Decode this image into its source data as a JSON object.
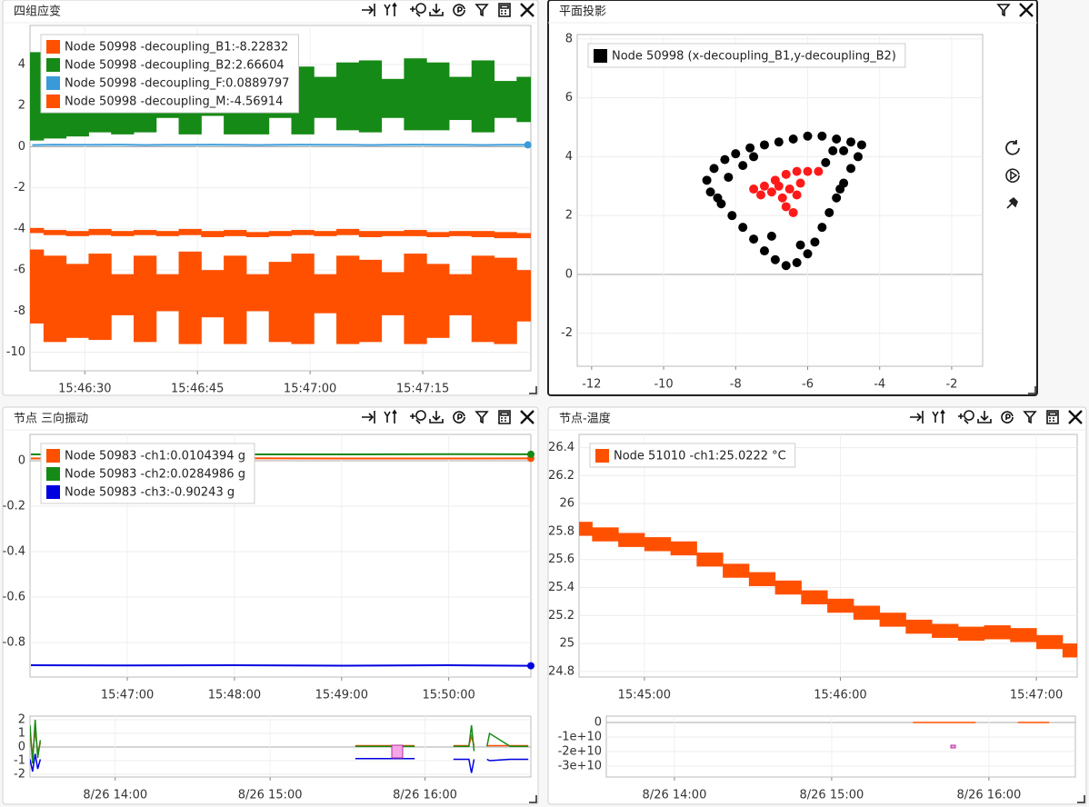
{
  "panels": [
    {
      "title": "四组应变",
      "chart": {
        "type": "line",
        "legend": "upper-left",
        "grid": true,
        "end_marker": true,
        "x": [
          "15:46:23",
          "15:46:26",
          "15:46:29",
          "15:46:32",
          "15:46:35",
          "15:46:38",
          "15:46:41",
          "15:46:44",
          "15:46:47",
          "15:46:50",
          "15:46:53",
          "15:46:56",
          "15:46:59",
          "15:47:02",
          "15:47:05",
          "15:47:08",
          "15:47:11",
          "15:47:14",
          "15:47:17",
          "15:47:20",
          "15:47:23",
          "15:47:26",
          "15:47:29"
        ],
        "xlim": [
          "15:46:22.7",
          "15:47:29.4"
        ],
        "xticks": [
          "15:46:30",
          "15:46:45",
          "15:47:00",
          "15:47:15"
        ],
        "ylim": [
          -10.9,
          5.9
        ],
        "yticks": [
          4,
          2,
          0,
          -2,
          -4,
          -6,
          -8,
          -10
        ],
        "series": [
          {
            "name": "Node 50998 -decoupling_B1:-8.22832",
            "color": "#ff5000",
            "high": [
              -5.0,
              -5.3,
              -5.7,
              -5.2,
              -6.2,
              -5.3,
              -6.2,
              -5.1,
              -6.0,
              -5.3,
              -6.2,
              -5.6,
              -5.2,
              -6.2,
              -5.3,
              -5.5,
              -6.1,
              -5.2,
              -5.7,
              -6.2,
              -5.3,
              -5.4,
              -6.0
            ],
            "low": [
              -8.6,
              -9.5,
              -9.3,
              -9.4,
              -8.2,
              -9.5,
              -8.0,
              -9.6,
              -8.3,
              -9.6,
              -8.0,
              -9.5,
              -9.6,
              -8.1,
              -9.6,
              -9.5,
              -8.2,
              -9.6,
              -9.3,
              -8.2,
              -9.5,
              -9.6,
              -8.5
            ]
          },
          {
            "name": "Node 50998 -decoupling_B2:2.66604",
            "color": "#168a16",
            "high": [
              4.6,
              4.5,
              4.4,
              3.9,
              3.8,
              4.0,
              3.3,
              3.9,
              3.2,
              4.2,
              4.3,
              3.3,
              3.9,
              3.4,
              4.1,
              4.2,
              3.3,
              4.3,
              4.1,
              3.4,
              4.2,
              3.2,
              3.4
            ],
            "low": [
              0.3,
              0.4,
              0.5,
              0.7,
              0.6,
              0.7,
              1.4,
              0.6,
              1.5,
              0.6,
              0.6,
              1.4,
              0.6,
              1.4,
              0.8,
              0.7,
              1.4,
              0.8,
              0.8,
              1.3,
              0.7,
              1.4,
              1.2
            ]
          },
          {
            "name": "Node 50998 -decoupling_F:0.0889797",
            "color": "#3a9ad9",
            "values": [
              0.08,
              0.1,
              0.09,
              0.09,
              0.1,
              0.08,
              0.09,
              0.09,
              0.1,
              0.09,
              0.08,
              0.09,
              0.1,
              0.09,
              0.09,
              0.08,
              0.09,
              0.1,
              0.09,
              0.09,
              0.08,
              0.09,
              0.09
            ]
          },
          {
            "name": "Node 50998 -decoupling_M:-4.56914",
            "color": "#ff5000",
            "high": [
              -3.95,
              -4.05,
              -4.1,
              -4.0,
              -4.1,
              -4.05,
              -4.1,
              -4.0,
              -4.1,
              -4.05,
              -4.15,
              -4.1,
              -4.05,
              -4.1,
              -4.0,
              -4.1,
              -4.1,
              -4.05,
              -4.15,
              -4.1,
              -4.1,
              -4.15,
              -4.2
            ],
            "low": [
              -4.2,
              -4.3,
              -4.35,
              -4.3,
              -4.35,
              -4.3,
              -4.35,
              -4.3,
              -4.4,
              -4.35,
              -4.4,
              -4.35,
              -4.3,
              -4.35,
              -4.3,
              -4.4,
              -4.35,
              -4.35,
              -4.4,
              -4.35,
              -4.4,
              -4.45,
              -4.45
            ]
          }
        ]
      }
    },
    {
      "title": "平面投影",
      "chart": {
        "type": "scatter",
        "legend": "upper-left",
        "grid": true,
        "xlim": [
          -12.4,
          -1.14
        ],
        "xticks": [
          -12,
          -10,
          -8,
          -6,
          -4,
          -2
        ],
        "ylim": [
          -3.12,
          8.15
        ],
        "yticks": [
          8,
          6,
          4,
          2,
          0,
          -2
        ],
        "series": [
          {
            "name": "Node 50998 (x-decoupling_B1,y-decoupling_B2)",
            "color": "#000000",
            "x": [
              -8.8,
              -8.6,
              -8.3,
              -8.0,
              -7.6,
              -7.2,
              -6.8,
              -6.4,
              -6.0,
              -5.6,
              -5.2,
              -4.8,
              -4.5,
              -4.6,
              -4.8,
              -5.0,
              -5.2,
              -5.4,
              -5.6,
              -5.8,
              -6.0,
              -6.3,
              -6.6,
              -6.9,
              -7.2,
              -7.5,
              -7.8,
              -8.1,
              -8.4,
              -8.7,
              -8.2,
              -7.8,
              -5.3,
              -5.0,
              -6.2,
              -7.0,
              -5.5,
              -7.5,
              -8.5,
              -5.1
            ],
            "y": [
              3.2,
              3.6,
              3.9,
              4.1,
              4.3,
              4.4,
              4.5,
              4.6,
              4.7,
              4.7,
              4.6,
              4.5,
              4.4,
              4.0,
              3.6,
              3.1,
              2.6,
              2.1,
              1.6,
              1.1,
              0.7,
              0.4,
              0.3,
              0.5,
              0.8,
              1.2,
              1.6,
              2.0,
              2.4,
              2.8,
              3.3,
              3.7,
              4.2,
              4.2,
              1.0,
              1.3,
              3.8,
              4.0,
              2.6,
              2.9
            ]
          },
          {
            "color": "#ff1a1a",
            "x": [
              -7.5,
              -7.2,
              -6.9,
              -6.6,
              -6.3,
              -6.0,
              -5.7,
              -6.2,
              -6.5,
              -6.7,
              -6.6,
              -6.4,
              -7.0,
              -6.3,
              -6.8,
              -7.3
            ],
            "y": [
              2.9,
              3.0,
              3.2,
              3.4,
              3.5,
              3.5,
              3.5,
              3.1,
              2.9,
              2.6,
              2.3,
              2.1,
              2.8,
              2.7,
              3.0,
              2.7
            ]
          }
        ]
      }
    },
    {
      "title": "节点 三向振动",
      "chart": {
        "type": "line",
        "legend": "upper-left",
        "grid": true,
        "end_marker": true,
        "x": [
          "15:46:06",
          "15:47:00",
          "15:48:00",
          "15:49:00",
          "15:50:00",
          "15:50:46"
        ],
        "xlim": [
          "15:46:05.5",
          "15:50:46"
        ],
        "xticks": [
          "15:47:00",
          "15:48:00",
          "15:49:00",
          "15:50:00"
        ],
        "ylim": [
          -0.952,
          0.116
        ],
        "yticks": [
          0,
          -0.2,
          -0.4,
          -0.6,
          -0.8
        ],
        "series": [
          {
            "name": "Node 50983 -ch1:0.0104394 g",
            "color": "#ff5000",
            "values": [
              0.01,
              0.012,
              0.011,
              0.01,
              0.01,
              0.0104
            ]
          },
          {
            "name": "Node 50983 -ch2:0.0284986 g",
            "color": "#168a16",
            "values": [
              0.028,
              0.029,
              0.028,
              0.028,
              0.029,
              0.0285
            ]
          },
          {
            "name": "Node 50983 -ch3:-0.90243 g",
            "color": "#0000e0",
            "values": [
              -0.9,
              -0.901,
              -0.9,
              -0.902,
              -0.9,
              -0.9024
            ]
          }
        ]
      },
      "overview": {
        "type": "line",
        "grid": true,
        "x": [
          "8/26 13:27",
          "8/26 13:28",
          "8/26 13:29",
          "8/26 13:30",
          "8/26 13:31",
          "8/26 13:32",
          "8/26 15:33",
          "8/26 15:56",
          "8/26 15:57",
          "8/26 16:11",
          "8/26 16:17",
          "8/26 16:18",
          "8/26 16:19",
          "8/26 16:20",
          "8/26 16:24",
          "8/26 16:25",
          "8/26 16:33",
          "8/26 16:40"
        ],
        "xlim": [
          "8/26 13:27",
          "8/26 16:41"
        ],
        "xticks": [
          "8/26 14:00",
          "8/26 15:00",
          "8/26 16:00"
        ],
        "ylim": [
          -2.2,
          2.27
        ],
        "yticks": [
          2,
          1,
          0,
          -1,
          -2
        ],
        "series": [
          {
            "color": "#ff5000",
            "values": [
              1.0,
              -0.6,
              1.2,
              -0.4,
              0.3,
              null,
              0.1,
              0.1,
              null,
              0.1,
              0.1,
              0.8,
              0.1,
              null,
              0.1,
              0.1,
              0.1,
              0.1
            ]
          },
          {
            "color": "#168a16",
            "values": [
              1.6,
              -1.2,
              2.0,
              -0.8,
              0.5,
              null,
              0.05,
              0.05,
              null,
              0.05,
              0.05,
              1.6,
              -0.3,
              null,
              0.05,
              1.0,
              0.05,
              0.05
            ]
          },
          {
            "color": "#0000e0",
            "values": [
              -0.9,
              -1.8,
              -0.5,
              -1.6,
              -0.9,
              null,
              -0.85,
              -0.85,
              null,
              -0.9,
              -0.9,
              -1.9,
              -0.9,
              null,
              -0.9,
              -1.0,
              -0.9,
              -0.9
            ]
          }
        ]
      }
    },
    {
      "title": "节点-温度",
      "chart": {
        "type": "line",
        "legend": "upper-left",
        "grid": true,
        "x": [
          "15:44:40",
          "15:44:48",
          "15:44:56",
          "15:45:04",
          "15:45:12",
          "15:45:20",
          "15:45:28",
          "15:45:36",
          "15:45:44",
          "15:45:52",
          "15:46:00",
          "15:46:08",
          "15:46:16",
          "15:46:24",
          "15:46:32",
          "15:46:40",
          "15:46:48",
          "15:46:56",
          "15:47:04",
          "15:47:12"
        ],
        "xlim": [
          "15:44:40",
          "15:47:12.5"
        ],
        "xticks": [
          "15:45:00",
          "15:46:00",
          "15:47:00"
        ],
        "ylim": [
          24.76,
          26.495
        ],
        "yticks": [
          26.4,
          26.2,
          26,
          25.8,
          25.6,
          25.4,
          25.2,
          25,
          24.8
        ],
        "series": [
          {
            "name": "Node 51010 -ch1:25.0222 °C",
            "color": "#ff5000",
            "high": [
              25.87,
              25.83,
              25.79,
              25.76,
              25.73,
              25.65,
              25.57,
              25.51,
              25.45,
              25.38,
              25.32,
              25.27,
              25.22,
              25.17,
              25.14,
              25.12,
              25.13,
              25.11,
              25.06,
              25.0
            ],
            "low": [
              25.77,
              25.73,
              25.69,
              25.66,
              25.63,
              25.55,
              25.47,
              25.41,
              25.35,
              25.28,
              25.22,
              25.17,
              25.12,
              25.07,
              25.04,
              25.02,
              25.03,
              25.01,
              24.96,
              24.9
            ]
          }
        ]
      },
      "overview": {
        "type": "line",
        "grid": true,
        "x": [
          "8/26 15:31",
          "8/26 15:55",
          "8/26 16:00",
          "8/26 16:11",
          "8/26 16:23"
        ],
        "xlim": [
          "8/26 13:34",
          "8/26 16:33"
        ],
        "xticks": [
          "8/26 14:00",
          "8/26 15:00",
          "8/26 16:00"
        ],
        "ylim": [
          -37500000000,
          4400000000
        ],
        "yticks": [
          0,
          {
            "value": -10000000000,
            "label": "-1e+10"
          },
          {
            "value": -20000000000,
            "label": "-2e+10"
          },
          {
            "value": -30000000000,
            "label": "-3e+10"
          }
        ],
        "series": [
          {
            "color": "#ff5000",
            "values": [
              0,
              0,
              null,
              0,
              0
            ]
          }
        ]
      }
    }
  ]
}
